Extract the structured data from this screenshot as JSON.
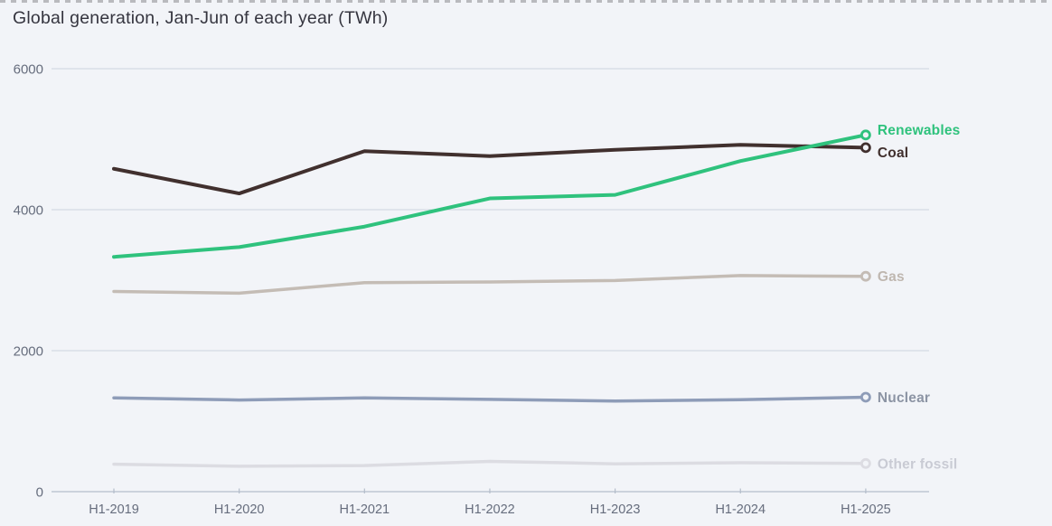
{
  "chart_data": {
    "type": "line",
    "title": "Global generation, Jan-Jun of each year (TWh)",
    "x_categories": [
      "H1-2019",
      "H1-2020",
      "H1-2021",
      "H1-2022",
      "H1-2023",
      "H1-2024",
      "H1-2025"
    ],
    "ylim": [
      0,
      6000
    ],
    "yticks": [
      0,
      2000,
      4000,
      6000
    ],
    "grid": "horizontal",
    "legend_position": "line-end-labels",
    "colors": {
      "background": "#f2f4f8",
      "gridline": "#ccd3de",
      "axis_line": "#b4bdca",
      "axis_label": "#666d7d",
      "title": "#35353f",
      "dashed_border": "#b9babe"
    },
    "series": [
      {
        "name": "Renewables",
        "color": "#2fc27d",
        "values": [
          3330,
          3470,
          3760,
          4160,
          4210,
          4690,
          5060
        ],
        "label_dy": -6
      },
      {
        "name": "Coal",
        "color": "#41302e",
        "values": [
          4580,
          4230,
          4830,
          4760,
          4850,
          4920,
          4880
        ],
        "label_dy": 5
      },
      {
        "name": "Gas",
        "color": "#c4bcb5",
        "label_color": "#bfb7b0",
        "values": [
          2840,
          2815,
          2965,
          2975,
          2995,
          3065,
          3055
        ],
        "label_dy": 0
      },
      {
        "name": "Nuclear",
        "color": "#8e9cb8",
        "label_color": "#8c94a4",
        "values": [
          1330,
          1300,
          1330,
          1310,
          1285,
          1305,
          1340
        ],
        "label_dy": 0
      },
      {
        "name": "Other fossil",
        "color": "#dcdce2",
        "label_color": "#c9cbd4",
        "values": [
          390,
          360,
          370,
          430,
          395,
          410,
          400
        ],
        "label_dy": 0
      }
    ]
  }
}
